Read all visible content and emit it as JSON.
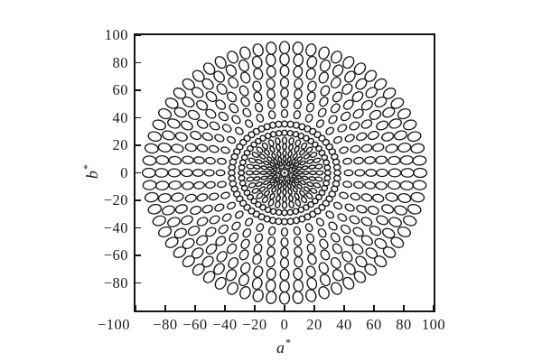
{
  "figure": {
    "background": "#ffffff",
    "ink_color": "#1c1c1c",
    "border_color": "#151515"
  },
  "axes": {
    "x": {
      "label_letter": "a",
      "label_sup": "*",
      "min": -100,
      "max": 100,
      "tick_step": 20,
      "tick_values": [
        -100,
        -80,
        -60,
        -40,
        -20,
        0,
        20,
        40,
        60,
        80,
        100
      ],
      "tick_labels": [
        "−100",
        "−80",
        "−60",
        "−40",
        "−20",
        "0",
        "20",
        "40",
        "60",
        "80",
        "100"
      ]
    },
    "y": {
      "label_letter": "b",
      "label_sup": "*",
      "min": -100,
      "max": 100,
      "tick_step": 20,
      "tick_values": [
        100,
        80,
        60,
        40,
        20,
        0,
        -20,
        -40,
        -60,
        -80
      ],
      "tick_labels": [
        "100",
        "80",
        "60",
        "40",
        "20",
        "0",
        "−20",
        "−40",
        "−60",
        "−80"
      ]
    }
  },
  "chart_data": {
    "type": "scatter",
    "subtype": "ellipse-glyph-field",
    "title": "",
    "xlabel": "a*",
    "ylabel": "b*",
    "xlim": [
      -100,
      100
    ],
    "ylim": [
      -100,
      100
    ],
    "grid": false,
    "legend": false,
    "glyph": "outline ellipse; major axis oriented radially toward the origin; size grows with chroma",
    "center": [
      0,
      0
    ],
    "rings": [
      {
        "chroma": 0,
        "count": 1,
        "semi_axis_radial": 0.9,
        "semi_axis_tangential": 0.9,
        "stroke_width": 1.0,
        "fill": true
      },
      {
        "chroma": 3.4,
        "count": 8,
        "semi_axis_radial": 1.05,
        "semi_axis_tangential": 0.8,
        "stroke_width": 1.0
      },
      {
        "chroma": 6.8,
        "count": 16,
        "semi_axis_radial": 1.4,
        "semi_axis_tangential": 0.9,
        "stroke_width": 1.0
      },
      {
        "chroma": 10.2,
        "count": 20,
        "semi_axis_radial": 1.8,
        "semi_axis_tangential": 1.0,
        "stroke_width": 1.0
      },
      {
        "chroma": 14.2,
        "count": 24,
        "semi_axis_radial": 2.0,
        "semi_axis_tangential": 1.15,
        "stroke_width": 0.95
      },
      {
        "chroma": 19.0,
        "count": 28,
        "semi_axis_radial": 2.2,
        "semi_axis_tangential": 1.3,
        "stroke_width": 0.95
      },
      {
        "chroma": 23.5,
        "count": 32,
        "semi_axis_radial": 2.35,
        "semi_axis_tangential": 1.5,
        "stroke_width": 0.9
      },
      {
        "chroma": 29.0,
        "count": 48,
        "semi_axis_radial": 2.0,
        "semi_axis_tangential": 1.8,
        "stroke_width": 0.9
      },
      {
        "chroma": 35.5,
        "count": 56,
        "semi_axis_radial": 2.2,
        "semi_axis_tangential": 2.0,
        "stroke_width": 0.9
      },
      {
        "chroma": 43.0,
        "count": 32,
        "semi_axis_radial": 2.9,
        "semi_axis_tangential": 2.1,
        "stroke_width": 0.85
      },
      {
        "chroma": 50.5,
        "count": 36,
        "semi_axis_radial": 3.2,
        "semi_axis_tangential": 2.3,
        "stroke_width": 0.85
      },
      {
        "chroma": 58.0,
        "count": 40,
        "semi_axis_radial": 3.5,
        "semi_axis_tangential": 2.5,
        "stroke_width": 0.85
      },
      {
        "chroma": 65.5,
        "count": 44,
        "semi_axis_radial": 3.7,
        "semi_axis_tangential": 2.7,
        "stroke_width": 0.85
      },
      {
        "chroma": 74.0,
        "count": 52,
        "semi_axis_radial": 4.0,
        "semi_axis_tangential": 2.9,
        "stroke_width": 0.85
      },
      {
        "chroma": 82.5,
        "count": 56,
        "semi_axis_radial": 4.2,
        "semi_axis_tangential": 3.1,
        "stroke_width": 0.85
      },
      {
        "chroma": 91.0,
        "count": 64,
        "semi_axis_radial": 4.4,
        "semi_axis_tangential": 3.3,
        "stroke_width": 0.85
      }
    ]
  }
}
